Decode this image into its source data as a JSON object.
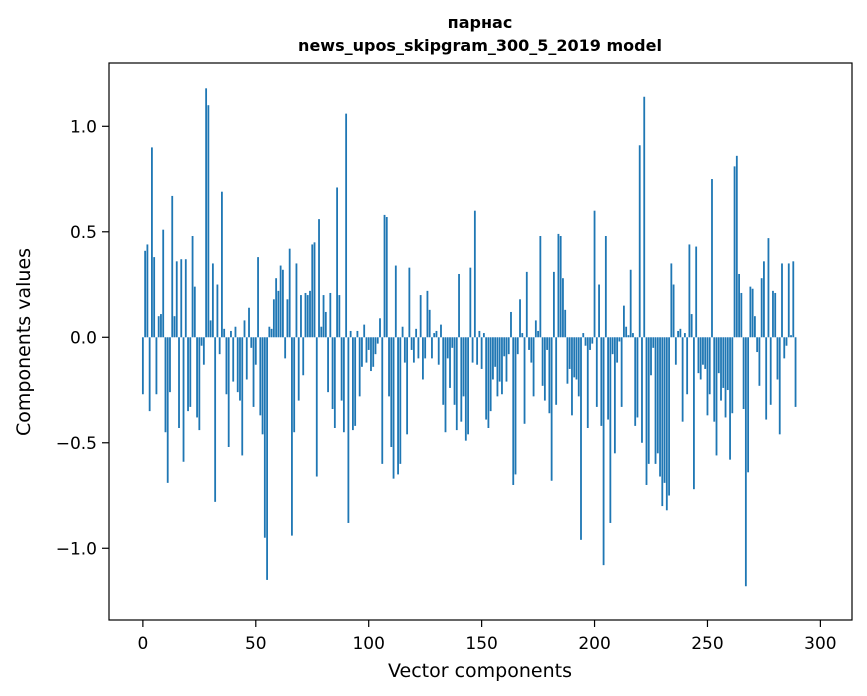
{
  "chart_data": {
    "type": "bar",
    "title": "парнас",
    "subtitle": "news_upos_skipgram_300_5_2019 model",
    "xlabel": "Vector components",
    "ylabel": "Components values",
    "xlim": [
      -15,
      314
    ],
    "ylim": [
      -1.34,
      1.3
    ],
    "xticks": [
      0,
      50,
      100,
      150,
      200,
      250,
      300
    ],
    "xtick_labels": [
      "0",
      "50",
      "100",
      "150",
      "200",
      "250",
      "300"
    ],
    "yticks": [
      -1.0,
      -0.5,
      0.0,
      0.5,
      1.0
    ],
    "ytick_labels": [
      "−1.0",
      "−0.5",
      "0.0",
      "0.5",
      "1.0"
    ],
    "bar_width": 0.8,
    "color": "#1f77b4",
    "x_start": 0,
    "values": [
      -0.27,
      0.41,
      0.44,
      -0.35,
      0.9,
      0.38,
      -0.27,
      0.1,
      0.11,
      0.51,
      -0.45,
      -0.69,
      -0.26,
      0.67,
      0.1,
      0.36,
      -0.43,
      0.37,
      -0.59,
      0.37,
      -0.35,
      -0.33,
      0.48,
      0.24,
      -0.38,
      -0.44,
      -0.04,
      -0.13,
      1.18,
      1.1,
      0.08,
      0.35,
      -0.78,
      0.25,
      -0.08,
      0.69,
      0.04,
      -0.27,
      -0.52,
      0.03,
      -0.21,
      0.05,
      -0.26,
      -0.3,
      -0.56,
      0.08,
      -0.2,
      0.14,
      -0.05,
      -0.33,
      -0.13,
      0.38,
      -0.37,
      -0.46,
      -0.95,
      -1.15,
      0.05,
      0.04,
      0.18,
      0.28,
      0.22,
      0.34,
      0.32,
      -0.1,
      0.18,
      0.42,
      -0.94,
      -0.45,
      0.35,
      -0.3,
      0.2,
      -0.18,
      0.21,
      0.2,
      0.22,
      0.44,
      0.45,
      -0.66,
      0.56,
      0.05,
      0.2,
      0.12,
      -0.26,
      0.21,
      -0.34,
      -0.43,
      0.71,
      0.2,
      -0.3,
      -0.45,
      1.06,
      -0.88,
      0.03,
      -0.44,
      -0.42,
      0.03,
      -0.28,
      -0.14,
      0.06,
      -0.12,
      -0.06,
      -0.16,
      -0.14,
      -0.08,
      -0.03,
      0.09,
      -0.6,
      0.58,
      0.57,
      -0.28,
      -0.52,
      -0.67,
      0.34,
      -0.65,
      -0.6,
      0.05,
      -0.12,
      -0.46,
      0.33,
      -0.06,
      -0.12,
      0.04,
      -0.1,
      0.2,
      -0.2,
      -0.1,
      0.22,
      0.13,
      -0.1,
      0.02,
      0.03,
      -0.13,
      0.06,
      -0.32,
      -0.45,
      -0.1,
      -0.24,
      -0.05,
      -0.32,
      -0.44,
      0.3,
      -0.4,
      -0.28,
      -0.49,
      -0.46,
      0.33,
      -0.12,
      0.6,
      -0.13,
      0.03,
      -0.15,
      0.02,
      -0.39,
      -0.43,
      -0.35,
      -0.2,
      -0.14,
      -0.28,
      -0.21,
      -0.27,
      -0.09,
      -0.21,
      -0.08,
      0.12,
      -0.7,
      -0.65,
      -0.08,
      0.18,
      0.02,
      -0.41,
      0.31,
      -0.06,
      -0.12,
      -0.28,
      0.08,
      0.03,
      0.48,
      -0.23,
      -0.3,
      -0.06,
      -0.36,
      -0.68,
      0.31,
      -0.32,
      0.49,
      0.48,
      0.28,
      0.13,
      -0.22,
      -0.15,
      -0.37,
      -0.19,
      -0.2,
      -0.28,
      -0.96,
      0.02,
      -0.04,
      -0.43,
      -0.06,
      -0.03,
      0.6,
      -0.33,
      0.25,
      -0.42,
      -1.08,
      0.48,
      -0.39,
      -0.88,
      -0.08,
      -0.55,
      -0.12,
      -0.02,
      -0.33,
      0.15,
      0.05,
      0.01,
      0.32,
      0.02,
      -0.42,
      -0.38,
      0.91,
      -0.5,
      1.14,
      -0.7,
      -0.6,
      -0.18,
      -0.05,
      -0.6,
      -0.55,
      -0.66,
      -0.8,
      -0.69,
      -0.82,
      -0.75,
      0.35,
      0.25,
      -0.13,
      0.03,
      0.04,
      -0.4,
      0.02,
      -0.27,
      0.44,
      0.11,
      -0.72,
      0.43,
      -0.17,
      -0.2,
      -0.13,
      -0.15,
      -0.37,
      -0.27,
      0.75,
      -0.4,
      -0.56,
      -0.17,
      -0.3,
      -0.24,
      -0.38,
      -0.25,
      -0.58,
      -0.36,
      0.81,
      0.86,
      0.3,
      0.21,
      -0.34,
      -1.18,
      -0.64,
      0.24,
      0.23,
      0.1,
      -0.07,
      -0.23,
      0.28,
      0.36,
      -0.39,
      0.47,
      -0.32,
      0.22,
      0.21,
      -0.2,
      -0.46,
      0.35,
      -0.1,
      -0.04,
      0.35,
      0.01,
      0.36,
      -0.33
    ]
  }
}
